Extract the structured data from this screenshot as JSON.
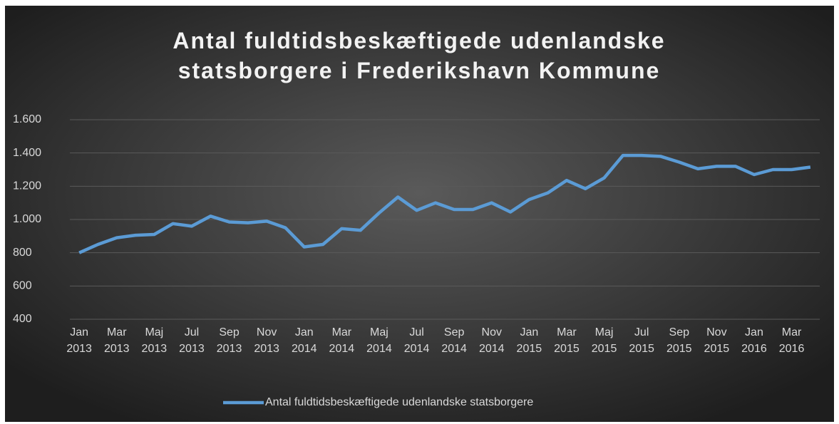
{
  "chart_data": {
    "type": "line",
    "title": "Antal fuldtidsbeskæftigede udenlandske statsborgere i Frederikshavn Kommune",
    "categories": [
      "Jan 2013",
      null,
      "Mar 2013",
      null,
      "Maj 2013",
      null,
      "Jul 2013",
      null,
      "Sep 2013",
      null,
      "Nov 2013",
      null,
      "Jan 2014",
      null,
      "Mar 2014",
      null,
      "Maj 2014",
      null,
      "Jul 2014",
      null,
      "Sep 2014",
      null,
      "Nov 2014",
      null,
      "Jan 2015",
      null,
      "Mar 2015",
      null,
      "Maj 2015",
      null,
      "Jul 2015",
      null,
      "Sep 2015",
      null,
      "Nov 2015",
      null,
      "Jan 2016",
      null,
      "Mar 2016",
      null
    ],
    "series": [
      {
        "name": "Antal fuldtidsbeskæftigede udenlandske statsborgere",
        "color": "#5b9bd5",
        "values": [
          800,
          850,
          890,
          905,
          910,
          975,
          960,
          1020,
          985,
          980,
          990,
          950,
          835,
          850,
          945,
          935,
          1040,
          1135,
          1055,
          1100,
          1060,
          1060,
          1100,
          1045,
          1120,
          1160,
          1235,
          1185,
          1250,
          1385,
          1385,
          1380,
          1345,
          1305,
          1320,
          1320,
          1270,
          1300,
          1300,
          1315
        ]
      }
    ],
    "ylim": [
      400,
      1600
    ],
    "yticks": [
      400,
      600,
      800,
      {
        "value": 1000,
        "label": "1.000"
      },
      {
        "value": 1200,
        "label": "1.200"
      },
      {
        "value": 1400,
        "label": "1.400"
      },
      {
        "value": 1600,
        "label": "1.600"
      }
    ],
    "grid": true,
    "legend": "bottom"
  }
}
